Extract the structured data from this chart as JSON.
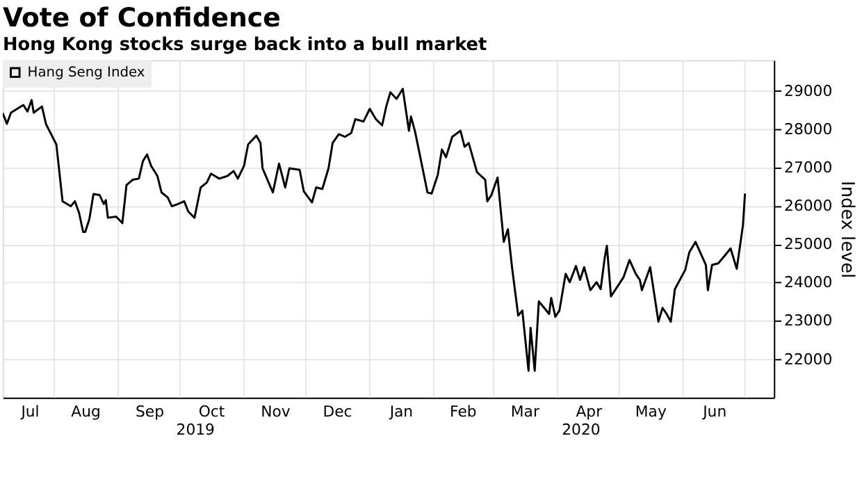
{
  "chart_data": {
    "type": "line",
    "title": "Vote of Confidence",
    "subtitle": "Hong Kong stocks surge back into a bull market",
    "ylabel": "Index level",
    "annotations": [
      "2019",
      "2020"
    ],
    "x": [
      "2019-07-07",
      "2019-07-09",
      "2019-07-11",
      "2019-07-17",
      "2019-07-19",
      "2019-07-21",
      "2019-07-22",
      "2019-07-26",
      "2019-07-28",
      "2019-08-02",
      "2019-08-05",
      "2019-08-09",
      "2019-08-11",
      "2019-08-13",
      "2019-08-15",
      "2019-08-16",
      "2019-08-18",
      "2019-08-20",
      "2019-08-23",
      "2019-08-25",
      "2019-08-26",
      "2019-08-27",
      "2019-08-31",
      "2019-09-03",
      "2019-09-05",
      "2019-09-08",
      "2019-09-11",
      "2019-09-13",
      "2019-09-15",
      "2019-09-17",
      "2019-09-20",
      "2019-09-22",
      "2019-09-25",
      "2019-09-27",
      "2019-09-30",
      "2019-10-03",
      "2019-10-05",
      "2019-10-08",
      "2019-10-11",
      "2019-10-14",
      "2019-10-16",
      "2019-10-20",
      "2019-10-24",
      "2019-10-27",
      "2019-10-29",
      "2019-11-01",
      "2019-11-03",
      "2019-11-07",
      "2019-11-09",
      "2019-11-10",
      "2019-11-15",
      "2019-11-18",
      "2019-11-21",
      "2019-11-23",
      "2019-11-28",
      "2019-11-30",
      "2019-12-04",
      "2019-12-06",
      "2019-12-09",
      "2019-12-12",
      "2019-12-14",
      "2019-12-17",
      "2019-12-20",
      "2019-12-23",
      "2019-12-25",
      "2019-12-29",
      "2020-01-01",
      "2020-01-04",
      "2020-01-07",
      "2020-01-09",
      "2020-01-11",
      "2020-01-14",
      "2020-01-17",
      "2020-01-20",
      "2020-01-21",
      "2020-01-23",
      "2020-01-29",
      "2020-01-31",
      "2020-02-03",
      "2020-02-05",
      "2020-02-07",
      "2020-02-10",
      "2020-02-14",
      "2020-02-16",
      "2020-02-18",
      "2020-02-22",
      "2020-02-26",
      "2020-02-27",
      "2020-02-29",
      "2020-03-03",
      "2020-03-06",
      "2020-03-08",
      "2020-03-10",
      "2020-03-13",
      "2020-03-15",
      "2020-03-18",
      "2020-03-19",
      "2020-03-21",
      "2020-03-23",
      "2020-03-25",
      "2020-03-28",
      "2020-03-29",
      "2020-03-31",
      "2020-04-02",
      "2020-04-05",
      "2020-04-07",
      "2020-04-10",
      "2020-04-12",
      "2020-04-14",
      "2020-04-17",
      "2020-04-20",
      "2020-04-22",
      "2020-04-24",
      "2020-04-25",
      "2020-04-27",
      "2020-05-03",
      "2020-05-06",
      "2020-05-09",
      "2020-05-11",
      "2020-05-12",
      "2020-05-16",
      "2020-05-20",
      "2020-05-22",
      "2020-05-24",
      "2020-05-26",
      "2020-05-28",
      "2020-06-02",
      "2020-06-04",
      "2020-06-07",
      "2020-06-12",
      "2020-06-13",
      "2020-06-15",
      "2020-06-18",
      "2020-06-21",
      "2020-06-24",
      "2020-06-27",
      "2020-06-30",
      "2020-07-01"
    ],
    "series": [
      {
        "name": "Hang Seng Index",
        "color": "#000000",
        "values": [
          28420,
          28140,
          28430,
          28630,
          28460,
          28760,
          28430,
          28590,
          28130,
          27600,
          26120,
          25990,
          26120,
          25820,
          25320,
          25320,
          25650,
          26310,
          26280,
          26050,
          26150,
          25690,
          25720,
          25550,
          26540,
          26680,
          26710,
          27170,
          27340,
          27040,
          26780,
          26350,
          26220,
          25990,
          26050,
          26120,
          25850,
          25690,
          26480,
          26610,
          26840,
          26710,
          26780,
          26910,
          26710,
          27040,
          27600,
          27830,
          27640,
          26980,
          26350,
          27100,
          26480,
          26980,
          26940,
          26380,
          26090,
          26480,
          26440,
          26980,
          27640,
          27870,
          27800,
          27900,
          28260,
          28200,
          28530,
          28260,
          28100,
          28590,
          28960,
          28790,
          29050,
          27960,
          28330,
          27930,
          26350,
          26320,
          26810,
          27470,
          27270,
          27800,
          27960,
          27540,
          27640,
          26880,
          26680,
          26120,
          26280,
          26740,
          25060,
          25390,
          24400,
          23140,
          23270,
          21700,
          22820,
          21700,
          23510,
          23380,
          23180,
          23600,
          23110,
          23270,
          24230,
          24010,
          24430,
          24070,
          24400,
          23800,
          24010,
          23830,
          24660,
          24960,
          23640,
          24130,
          24590,
          24230,
          24070,
          23800,
          24400,
          22980,
          23340,
          23180,
          22980,
          23830,
          24330,
          24790,
          25060,
          24460,
          23800,
          24460,
          24500,
          24690,
          24890,
          24360,
          25490,
          26320
        ]
      }
    ],
    "xlim": [
      "2019-07-07",
      "2020-07-15"
    ],
    "xticks": [
      {
        "value": "2019-07-20",
        "label": "Jul"
      },
      {
        "value": "2019-08-01",
        "label": null
      },
      {
        "value": "2019-08-16",
        "label": "Aug"
      },
      {
        "value": "2019-09-01",
        "label": null
      },
      {
        "value": "2019-09-16",
        "label": "Sep"
      },
      {
        "value": "2019-10-01",
        "label": null
      },
      {
        "value": "2019-10-16",
        "label": "Oct"
      },
      {
        "value": "2019-11-01",
        "label": null
      },
      {
        "value": "2019-11-16",
        "label": "Nov"
      },
      {
        "value": "2019-12-01",
        "label": null
      },
      {
        "value": "2019-12-16",
        "label": "Dec"
      },
      {
        "value": "2020-01-01",
        "label": null
      },
      {
        "value": "2020-01-16",
        "label": "Jan"
      },
      {
        "value": "2020-02-01",
        "label": null
      },
      {
        "value": "2020-02-15",
        "label": "Feb"
      },
      {
        "value": "2020-03-01",
        "label": null
      },
      {
        "value": "2020-03-16",
        "label": "Mar"
      },
      {
        "value": "2020-04-01",
        "label": null
      },
      {
        "value": "2020-04-16",
        "label": "Apr"
      },
      {
        "value": "2020-05-01",
        "label": null
      },
      {
        "value": "2020-05-16",
        "label": "May"
      },
      {
        "value": "2020-06-01",
        "label": null
      },
      {
        "value": "2020-06-16",
        "label": "Jun"
      },
      {
        "value": "2020-07-01",
        "label": null
      }
    ],
    "ylim": [
      21000,
      29800
    ],
    "yticks": [
      22000,
      23000,
      24000,
      25000,
      26000,
      27000,
      28000,
      29000
    ],
    "grid": true,
    "legend": "top left"
  }
}
